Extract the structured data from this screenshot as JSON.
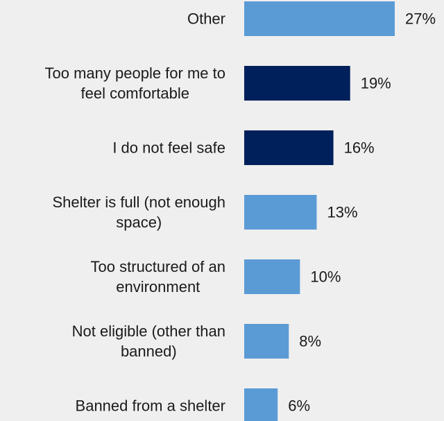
{
  "chart_data": {
    "type": "bar",
    "orientation": "horizontal",
    "categories": [
      "Other",
      "Too many people for me to feel comfortable",
      "I do not feel safe",
      "Shelter is full (not enough space)",
      "Too structured of an environment",
      "Not eligible (other than banned)",
      "Banned from a shelter"
    ],
    "category_lines": [
      [
        "Other"
      ],
      [
        "Too many people for me to",
        "feel comfortable"
      ],
      [
        "I do not feel safe"
      ],
      [
        "Shelter is full (not enough",
        "space)"
      ],
      [
        "Too structured of an",
        "environment"
      ],
      [
        "Not eligible (other than",
        "banned)"
      ],
      [
        "Banned from a shelter"
      ]
    ],
    "values": [
      27,
      19,
      16,
      13,
      10,
      8,
      6
    ],
    "value_labels": [
      "27%",
      "19%",
      "16%",
      "13%",
      "10%",
      "8%",
      "6%"
    ],
    "highlighted": [
      false,
      true,
      true,
      false,
      false,
      false,
      false
    ],
    "colors": {
      "default": "#5b9bd5",
      "highlight": "#00205b",
      "background": "#efefef",
      "text": "#1a1a1a"
    },
    "xlim": [
      0,
      27
    ],
    "grid": false,
    "legend": "none"
  }
}
